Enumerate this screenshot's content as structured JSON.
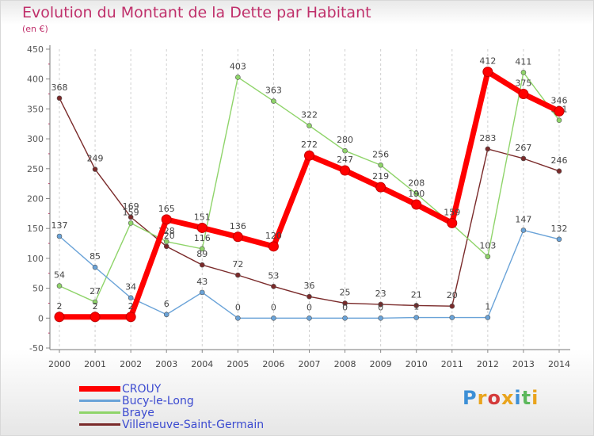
{
  "title": "Evolution du Montant de la Dette par Habitant",
  "unit": "(en €)",
  "logo": "Proxiti",
  "colors": {
    "title": "#c0306b",
    "axis": "#555555",
    "legend_text": "#3b4ad0"
  },
  "chart_data": {
    "type": "line",
    "categories": [
      "2000",
      "2001",
      "2002",
      "2003",
      "2004",
      "2005",
      "2006",
      "2007",
      "2008",
      "2009",
      "2010",
      "2011",
      "2012",
      "2013",
      "2014"
    ],
    "ylim": [
      -50,
      450
    ],
    "yticks": [
      -50,
      0,
      50,
      100,
      150,
      200,
      250,
      300,
      350,
      400,
      450
    ],
    "grid": "vertical dashed",
    "legend_position": "bottom-left",
    "series": [
      {
        "name": "Villeneuve-Saint-Germain",
        "color": "#7a2a2a",
        "values": [
          368,
          249,
          169,
          120,
          89,
          72,
          53,
          36,
          25,
          23,
          21,
          20,
          283,
          267,
          246
        ]
      },
      {
        "name": "Braye",
        "color": "#8fd46a",
        "values": [
          54,
          27,
          159,
          128,
          116,
          403,
          363,
          322,
          280,
          256,
          208,
          157,
          103,
          411,
          331
        ]
      },
      {
        "name": "Bucy-le-Long",
        "color": "#6aa3d8",
        "values": [
          137,
          85,
          34,
          6,
          43,
          0,
          0,
          0,
          0,
          0,
          1,
          1,
          1,
          147,
          132
        ]
      },
      {
        "name": "CROUY",
        "color": "#ff0000",
        "values": [
          2,
          2,
          2,
          165,
          151,
          136,
          120,
          272,
          247,
          219,
          190,
          159,
          412,
          375,
          346
        ]
      }
    ],
    "data_labels": [
      [
        "368",
        "249",
        "169",
        "120",
        "89",
        "72",
        "53",
        "36",
        "25",
        "23",
        "21",
        "20",
        "283",
        "267",
        "246"
      ],
      [
        "54",
        "27",
        "159",
        "128",
        "116",
        "403",
        "363",
        "322",
        "280",
        "256",
        "208",
        "",
        "103",
        "411",
        "331"
      ],
      [
        "137",
        "85",
        "34",
        "6",
        "43",
        "0",
        "0",
        "0",
        "0",
        "0",
        "1",
        "",
        "1",
        "147",
        "132"
      ],
      [
        "2",
        "2",
        "2",
        "165",
        "151",
        "136",
        "120",
        "272",
        "247",
        "219",
        "190",
        "159",
        "412",
        "375",
        "346"
      ]
    ],
    "legend_order": [
      "CROUY",
      "Bucy-le-Long",
      "Braye",
      "Villeneuve-Saint-Germain"
    ]
  }
}
